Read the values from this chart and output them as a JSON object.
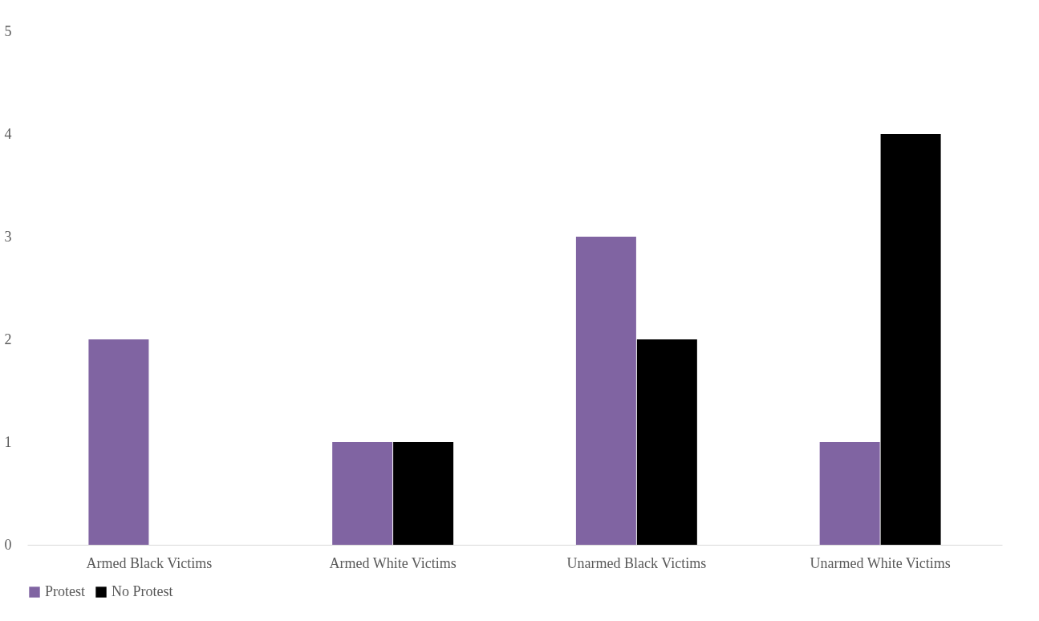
{
  "chart_data": {
    "type": "bar",
    "categories": [
      "Armed Black Victims",
      "Armed White Victims",
      "Unarmed Black Victims",
      "Unarmed White Victims"
    ],
    "series": [
      {
        "name": "Protest",
        "color": "#8064a2",
        "values": [
          2,
          1,
          3,
          1
        ]
      },
      {
        "name": "No Protest",
        "color": "#000000",
        "values": [
          0,
          1,
          2,
          4
        ]
      }
    ],
    "ylim": [
      0,
      5
    ],
    "yticks": [
      0,
      1,
      2,
      3,
      4,
      5
    ],
    "grid": false,
    "legend": "bottom"
  }
}
